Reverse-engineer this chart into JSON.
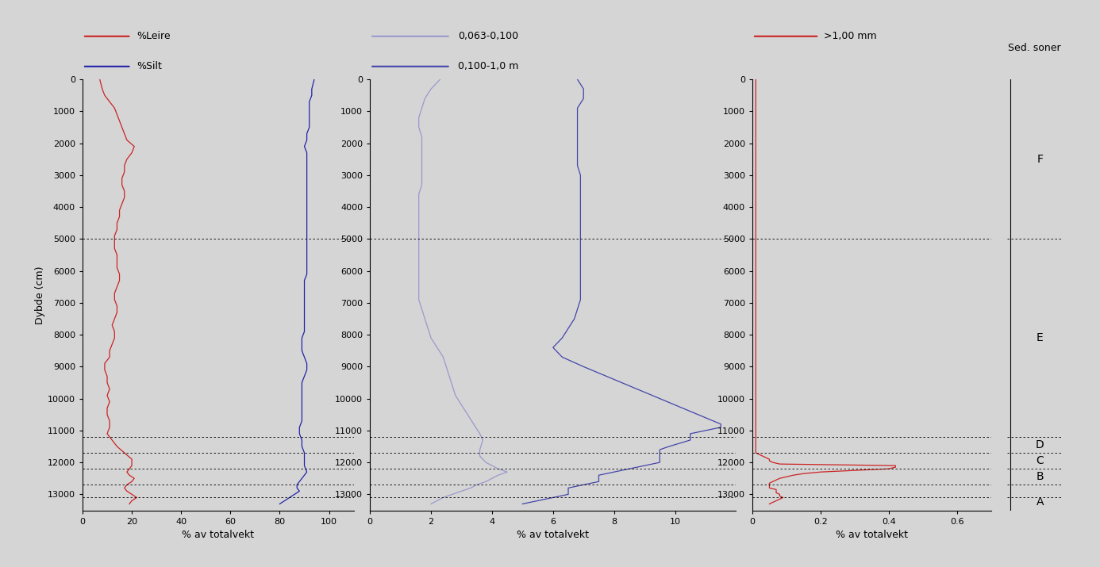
{
  "background_color": "#d5d5d5",
  "ylabel": "Dybde (cm)",
  "xlabel": "% av totalvekt",
  "ylim": [
    13500,
    0
  ],
  "yticks": [
    0,
    1000,
    2000,
    3000,
    4000,
    5000,
    6000,
    7000,
    8000,
    9000,
    10000,
    11000,
    12000,
    13000
  ],
  "hlines": [
    5000,
    11200,
    11700,
    12200,
    12700,
    13100
  ],
  "leire_color": "#cc2222",
  "silt_color": "#2222aa",
  "fine_sand_color": "#9999cc",
  "medium_sand_color": "#4444aa",
  "gravel_color": "#cc2222",
  "leire_depth": [
    0,
    300,
    500,
    700,
    900,
    1100,
    1300,
    1500,
    1700,
    1900,
    2100,
    2300,
    2500,
    2700,
    2900,
    3100,
    3300,
    3500,
    3700,
    3900,
    4100,
    4300,
    4500,
    4700,
    4900,
    5100,
    5300,
    5500,
    5700,
    5900,
    6100,
    6300,
    6500,
    6700,
    6900,
    7100,
    7300,
    7500,
    7700,
    7900,
    8100,
    8300,
    8500,
    8700,
    8900,
    9100,
    9300,
    9500,
    9700,
    9900,
    10100,
    10300,
    10500,
    10700,
    10900,
    11100,
    11300,
    11500,
    11700,
    11900,
    12100,
    12300,
    12400,
    12500,
    12600,
    12700,
    12800,
    12900,
    13000,
    13100,
    13200,
    13300
  ],
  "leire_val": [
    7,
    8,
    9,
    11,
    13,
    14,
    15,
    16,
    17,
    18,
    21,
    20,
    18,
    17,
    17,
    16,
    16,
    17,
    17,
    16,
    15,
    15,
    14,
    14,
    13,
    13,
    13,
    14,
    14,
    14,
    15,
    15,
    14,
    13,
    13,
    14,
    14,
    13,
    12,
    13,
    13,
    12,
    11,
    11,
    9,
    9,
    10,
    10,
    11,
    10,
    11,
    10,
    10,
    11,
    11,
    10,
    12,
    14,
    17,
    20,
    20,
    18,
    19,
    21,
    20,
    18,
    17,
    18,
    20,
    22,
    20,
    19
  ],
  "silt_depth": [
    0,
    300,
    500,
    700,
    900,
    1100,
    1300,
    1500,
    1700,
    1900,
    2100,
    2300,
    2500,
    2700,
    2900,
    3100,
    3300,
    3500,
    3700,
    3900,
    4100,
    4300,
    4500,
    4700,
    4900,
    5100,
    5300,
    5500,
    5700,
    5900,
    6100,
    6300,
    6500,
    6700,
    6900,
    7100,
    7300,
    7500,
    7700,
    7900,
    8100,
    8300,
    8500,
    8700,
    8900,
    9100,
    9300,
    9500,
    9700,
    9900,
    10100,
    10300,
    10500,
    10700,
    10900,
    11100,
    11300,
    11500,
    11700,
    11900,
    12100,
    12300,
    12400,
    12500,
    12600,
    12700,
    12800,
    12900,
    13000,
    13100,
    13200,
    13300
  ],
  "silt_val": [
    94,
    93,
    93,
    92,
    92,
    92,
    92,
    92,
    91,
    91,
    90,
    91,
    91,
    91,
    91,
    91,
    91,
    91,
    91,
    91,
    91,
    91,
    91,
    91,
    91,
    91,
    91,
    91,
    91,
    91,
    91,
    90,
    90,
    90,
    90,
    90,
    90,
    90,
    90,
    90,
    89,
    89,
    89,
    90,
    91,
    91,
    90,
    89,
    89,
    89,
    89,
    89,
    89,
    89,
    88,
    88,
    89,
    89,
    90,
    90,
    90,
    91,
    90,
    89,
    88,
    87,
    87,
    88,
    86,
    84,
    82,
    80
  ],
  "fine_sand_depth": [
    0,
    300,
    600,
    900,
    1200,
    1500,
    1800,
    2100,
    2400,
    2700,
    3000,
    3300,
    3600,
    3900,
    4200,
    4500,
    4800,
    5100,
    5400,
    5700,
    6000,
    6300,
    6600,
    6900,
    7200,
    7500,
    7800,
    8100,
    8400,
    8700,
    9000,
    9300,
    9600,
    9900,
    10200,
    10500,
    10800,
    11100,
    11300,
    11600,
    11800,
    12000,
    12100,
    12200,
    12300,
    12400,
    12500,
    12600,
    12700,
    12800,
    12900,
    13000,
    13100,
    13200,
    13300
  ],
  "fine_sand_val": [
    2.3,
    2.0,
    1.8,
    1.7,
    1.6,
    1.6,
    1.7,
    1.7,
    1.7,
    1.7,
    1.7,
    1.7,
    1.6,
    1.6,
    1.6,
    1.6,
    1.6,
    1.6,
    1.6,
    1.6,
    1.6,
    1.6,
    1.6,
    1.6,
    1.7,
    1.8,
    1.9,
    2.0,
    2.2,
    2.4,
    2.5,
    2.6,
    2.7,
    2.8,
    3.0,
    3.2,
    3.4,
    3.6,
    3.7,
    3.6,
    3.6,
    3.8,
    4.0,
    4.2,
    4.5,
    4.2,
    4.0,
    3.8,
    3.5,
    3.3,
    3.0,
    2.7,
    2.4,
    2.2,
    2.0
  ],
  "medium_sand_depth": [
    0,
    300,
    600,
    900,
    1200,
    1500,
    1800,
    2100,
    2400,
    2700,
    3000,
    3300,
    3600,
    3900,
    4200,
    4500,
    4800,
    5100,
    5400,
    5700,
    6000,
    6300,
    6600,
    6900,
    7200,
    7500,
    7800,
    8100,
    8400,
    8700,
    9000,
    9200,
    9400,
    9600,
    9800,
    10000,
    10200,
    10400,
    10600,
    10800,
    10900,
    11000,
    11100,
    11200,
    11300,
    11500,
    11600,
    11700,
    11800,
    11900,
    12000,
    12100,
    12200,
    12300,
    12400,
    12500,
    12600,
    12700,
    12800,
    12900,
    13000,
    13100,
    13200,
    13300
  ],
  "medium_sand_val": [
    6.8,
    7.0,
    7.0,
    6.8,
    6.8,
    6.8,
    6.8,
    6.8,
    6.8,
    6.8,
    6.9,
    6.9,
    6.9,
    6.9,
    6.9,
    6.9,
    6.9,
    6.9,
    6.9,
    6.9,
    6.9,
    6.9,
    6.9,
    6.9,
    6.8,
    6.7,
    6.5,
    6.3,
    6.0,
    6.3,
    7.0,
    7.5,
    8.0,
    8.5,
    9.0,
    9.5,
    10.0,
    10.5,
    11.0,
    11.5,
    11.5,
    11.0,
    10.5,
    10.5,
    10.5,
    9.8,
    9.5,
    9.5,
    9.5,
    9.5,
    9.5,
    9.0,
    8.5,
    8.0,
    7.5,
    7.5,
    7.5,
    7.0,
    6.5,
    6.5,
    6.5,
    6.0,
    5.5,
    5.0
  ],
  "gravel_depth": [
    0,
    1000,
    2000,
    3000,
    4000,
    5000,
    6000,
    7000,
    8000,
    9000,
    10000,
    11000,
    11200,
    11500,
    11700,
    11750,
    11800,
    11850,
    11900,
    11950,
    12000,
    12050,
    12100,
    12150,
    12200,
    12250,
    12300,
    12350,
    12400,
    12450,
    12500,
    12550,
    12600,
    12650,
    12700,
    12750,
    12800,
    12850,
    12900,
    12950,
    13000,
    13050,
    13100,
    13150,
    13200,
    13250,
    13300
  ],
  "gravel_val": [
    0.01,
    0.01,
    0.01,
    0.01,
    0.01,
    0.01,
    0.01,
    0.01,
    0.01,
    0.01,
    0.01,
    0.01,
    0.01,
    0.01,
    0.01,
    0.02,
    0.03,
    0.04,
    0.05,
    0.05,
    0.06,
    0.08,
    0.42,
    0.42,
    0.4,
    0.3,
    0.2,
    0.15,
    0.12,
    0.1,
    0.08,
    0.07,
    0.06,
    0.05,
    0.05,
    0.05,
    0.05,
    0.07,
    0.07,
    0.07,
    0.08,
    0.08,
    0.09,
    0.08,
    0.07,
    0.06,
    0.05
  ],
  "zone_labels": [
    "F",
    "E",
    "D",
    "C",
    "B",
    "A"
  ],
  "zone_y": [
    2500,
    8100,
    11450,
    11950,
    12450,
    13250
  ]
}
